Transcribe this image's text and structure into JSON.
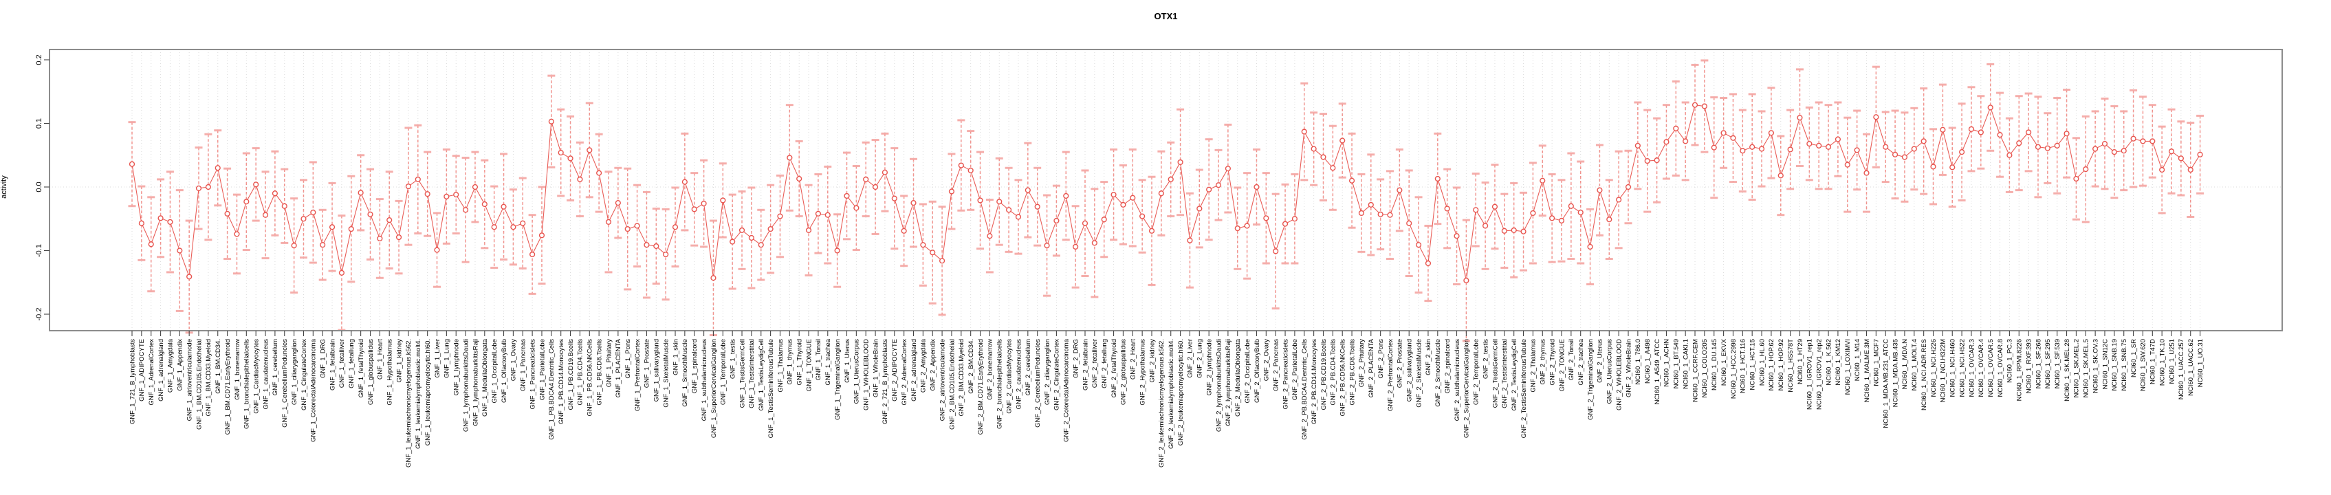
{
  "window": {
    "background": "#ffffff"
  },
  "chart_data": {
    "type": "scatter",
    "title": "OTX1",
    "ylabel": "activity",
    "xlabel": "",
    "ylim": [
      -0.22,
      0.225
    ],
    "grid": "dotted vertical line at every category; dotted horizontal line at 0.0",
    "legend": "none",
    "marker": "open circle with symmetric error bars, consecutive points connected by line",
    "y_ticks": {
      "values": [
        0.2,
        0.1,
        0.0,
        -0.1,
        -0.2
      ],
      "labels": [
        "0.2",
        "0.1",
        "0.0",
        "-0.1",
        "-0.2"
      ]
    },
    "colors": {
      "point": "#e8544e",
      "line": "#e8544e",
      "errorbar": "#f07d76",
      "errorbar_cap": "#f4a6a3",
      "box": "#8c8c8c",
      "grid": "#dbdbdb",
      "text": "#000000"
    },
    "categories": [
      "GNF_1_721_B_lymphoblasts",
      "GNF_1_ADIPOCYTE",
      "GNF_1_AdrenalCortex",
      "GNF_1_adrenalgland",
      "GNF_1_Amygdala",
      "GNF_1_Appendix",
      "GNF_1_atrioventricularnode",
      "GNF_1_BM.CD105.Endothelial",
      "GNF_1_BM.CD33.Myeloid",
      "GNF_1_BM.CD34.",
      "GNF_1_BM.CD71.EarlyErythroid",
      "GNF_1_bonemarrow",
      "GNF_1_bronchialepithelialcells",
      "GNF_1_CardiacMyocytes",
      "GNF_1_caudatenucleus",
      "GNF_1_cerebellum",
      "GNF_1_CerebellumPeduncles",
      "GNF_1_ciliaryganglion",
      "GNF_1_CingulateCortex",
      "GNF_1_ColorectalAdenocarcinoma",
      "GNF_1_DRG",
      "GNF_1_fetalbrain",
      "GNF_1_fetalliver",
      "GNF_1_fetallung",
      "GNF_1_fetalThyroid",
      "GNF_1_globuspallidus",
      "GNF_1_Heart",
      "GNF_1_Hypothalamus",
      "GNF_1_kidney",
      "GNF_1_leukemiachronicmyelogenous.k562.",
      "GNF_1_leukemialymphoblastic.molt4.",
      "GNF_1_leukemiapromyelocytic.hl60.",
      "GNF_1_Liver",
      "GNF_1_Lung",
      "GNF_1_lymphnode",
      "GNF_1_lymphomaburkittsDaudi",
      "GNF_1_lymphomaburkittsRaji",
      "GNF_1_MedullaOblongata",
      "GNF_1_OccipitalLobe",
      "GNF_1_OlfactoryBulb",
      "GNF_1_Ovary",
      "GNF_1_Pancreas",
      "GNF_1_Pancreaticislets",
      "GNF_1_ParietalLobe",
      "GNF_1_PB.BDCA4.Dentritic_Cells",
      "GNF_1_PB.CD14.Monocytes",
      "GNF_1_PB.CD19.Bcells",
      "GNF_1_PB.CD4.Tcells",
      "GNF_1_PB.CD56.NKCells",
      "GNF_1_PB.CD8.Tcells",
      "GNF_1_Pituitary",
      "GNF_1_PLACENTA",
      "GNF_1_Pons",
      "GNF_1_PrefrontalCortex",
      "GNF_1_Prostate",
      "GNF_1_salivarygland",
      "GNF_1_SkeletalMuscle",
      "GNF_1_skin",
      "GNF_1_SmoothMuscle",
      "GNF_1_spinalcord",
      "GNF_1_subthalamicnucleus",
      "GNF_1_SuperiorCervicalGanglion",
      "GNF_1_TemporalLobe",
      "GNF_1_testis",
      "GNF_1_TestisGermCell",
      "GNF_1_TestisInterstitial",
      "GNF_1_TestisLeydigCell",
      "GNF_1_TestisSeminiferousTubule",
      "GNF_1_Thalamus",
      "GNF_1_thymus",
      "GNF_1_Thyroid",
      "GNF_1_TONGUE",
      "GNF_1_Tonsil",
      "GNF_1_trachea",
      "GNF_1_TrigeminalGanglion",
      "GNF_1_Uterus",
      "GNF_1_UterusCorpus",
      "GNF_1_WHOLEBLOOD",
      "GNF_1_WholeBrain",
      "GNF_2_721_B_lymphoblasts",
      "GNF_2_ADIPOCYTE",
      "GNF_2_AdrenalCortex",
      "GNF_2_adrenalgland",
      "GNF_2_Amygdala",
      "GNF_2_Appendix",
      "GNF_2_atrioventricularnode",
      "GNF_2_BM.CD105.Endothelial",
      "GNF_2_BM.CD33.Myeloid",
      "GNF_2_BM.CD34.",
      "GNF_2_BM.CD71.EarlyErythroid",
      "GNF_2_bonemarrow",
      "GNF_2_bronchialepithelialcells",
      "GNF_2_CardiacMyocytes",
      "GNF_2_caudatenucleus",
      "GNF_2_cerebellum",
      "GNF_2_CerebellumPeduncles",
      "GNF_2_ciliaryganglion",
      "GNF_2_CingulateCortex",
      "GNF_2_ColorectalAdenocarcinoma",
      "GNF_2_DRG",
      "GNF_2_fetalbrain",
      "GNF_2_fetalliver",
      "GNF_2_fetallung",
      "GNF_2_fetalThyroid",
      "GNF_2_globuspallidus",
      "GNF_2_Heart",
      "GNF_2_Hypothalamus",
      "GNF_2_kidney",
      "GNF_2_leukemiachronicmyelogenous.k562.",
      "GNF_2_leukemialymphoblastic.molt4.",
      "GNF_2_leukemiapromyelocytic.hl60.",
      "GNF_2_Liver",
      "GNF_2_Lung",
      "GNF_2_lymphnode",
      "GNF_2_lymphomaburkittsDaudi",
      "GNF_2_lymphomaburkittsRaji",
      "GNF_2_MedullaOblongata",
      "GNF_2_OccipitalLobe",
      "GNF_2_OlfactoryBulb",
      "GNF_2_Ovary",
      "GNF_2_Pancreas",
      "GNF_2_Pancreaticislets",
      "GNF_2_ParietalLobe",
      "GNF_2_PB.BDCA4.Dentritic_Cells",
      "GNF_2_PB.CD14.Monocytes",
      "GNF_2_PB.CD19.Bcells",
      "GNF_2_PB.CD4.Tcells",
      "GNF_2_PB.CD56.NKCells",
      "GNF_2_PB.CD8.Tcells",
      "GNF_2_Pituitary",
      "GNF_2_PLACENTA",
      "GNF_2_Pons",
      "GNF_2_PrefrontalCortex",
      "GNF_2_Prostate",
      "GNF_2_salivarygland",
      "GNF_2_SkeletalMuscle",
      "GNF_2_skin",
      "GNF_2_SmoothMuscle",
      "GNF_2_spinalcord",
      "GNF_2_subthalamicnucleus",
      "GNF_2_SuperiorCervicalGanglion",
      "GNF_2_TemporalLobe",
      "GNF_2_testis",
      "GNF_2_TestisGermCell",
      "GNF_2_TestisInterstitial",
      "GNF_2_TestisLeydigCell",
      "GNF_2_TestisSeminiferousTubule",
      "GNF_2_Thalamus",
      "GNF_2_thymus",
      "GNF_2_Thyroid",
      "GNF_2_TONGUE",
      "GNF_2_Tonsil",
      "GNF_2_trachea",
      "GNF_2_TrigeminalGanglion",
      "GNF_2_Uterus",
      "GNF_2_UterusCorpus",
      "GNF_2_WHOLEBLOOD",
      "GNF_2_WholeBrain",
      "NCI60_1_786.0",
      "NCI60_1_A498",
      "NCI60_1_A549_ATCC",
      "NCI60_1_ACHN",
      "NCI60_1_BT.549",
      "NCI60_1_CAKI.1",
      "NCI60_1_CCRF.CEM",
      "NCI60_1_COLO205",
      "NCI60_1_DU.145",
      "NCI60_1_EKVX",
      "NCI60_1_HCC.2998",
      "NCI60_1_HCT.116",
      "NCI60_1_HCT.15",
      "NCI60_1_HL.60",
      "NCI60_1_HOP.62",
      "NCI60_1_HOP.92",
      "NCI60_1_HS578T",
      "NCI60_1_HT29",
      "NCI60_1_IGROV1_rep1",
      "NCI60_1_IGROV1_rep2",
      "NCI60_1_K.562",
      "NCI60_1_KM12",
      "NCI60_1_LOXIMVI",
      "NCI60_1_M14",
      "NCI60_1_MALME.3M",
      "NCI60_1_MCF7",
      "NCI60_1_MDA.MB.231_ATCC",
      "NCI60_1_MDA.MB.435",
      "NCI60_1_MDA.N",
      "NCI60_1_MOLT.4",
      "NCI60_1_NCI.ADR.RES",
      "NCI60_1_NCI.H226",
      "NCI60_1_NCI.H322M",
      "NCI60_1_NCI.H460",
      "NCI60_1_NCI.H522",
      "NCI60_1_OVCAR.3",
      "NCI60_1_OVCAR.4",
      "NCI60_1_OVCAR.5",
      "NCI60_1_OVCAR.8",
      "NCI60_1_PC.3",
      "NCI60_1_RPMI.8226",
      "NCI60_1_RXF.393",
      "NCI60_1_SF.268",
      "NCI60_1_SF.295",
      "NCI60_1_SF.539",
      "NCI60_1_SK.MEL.28",
      "NCI60_1_SK.MEL.2",
      "NCI60_1_SK.MEL.5",
      "NCI60_1_SK.OV.3",
      "NCI60_1_SN12C",
      "NCI60_1_SNB.19",
      "NCI60_1_SNB.75",
      "NCI60_1_SR",
      "NCI60_1_SW.620",
      "NCI60_1_T47D",
      "NCI60_1_TK.10",
      "NCI60_1_U251",
      "NCI60_1_UACC.257",
      "NCI60_1_UACC.62",
      "NCI60_1_UO.31"
    ],
    "values": [
      0.036,
      -0.057,
      -0.09,
      -0.049,
      -0.055,
      -0.1,
      -0.141,
      -0.002,
      0.0,
      0.03,
      -0.042,
      -0.074,
      -0.023,
      0.004,
      -0.044,
      -0.01,
      -0.03,
      -0.092,
      -0.05,
      -0.04,
      -0.091,
      -0.063,
      -0.135,
      -0.066,
      -0.009,
      -0.043,
      -0.081,
      -0.052,
      -0.079,
      0.001,
      0.012,
      -0.011,
      -0.099,
      -0.015,
      -0.012,
      -0.036,
      0.0,
      -0.027,
      -0.063,
      -0.031,
      -0.063,
      -0.057,
      -0.106,
      -0.076,
      0.103,
      0.054,
      0.045,
      0.012,
      0.058,
      0.022,
      -0.055,
      -0.025,
      -0.066,
      -0.061,
      -0.091,
      -0.093,
      -0.106,
      -0.063,
      0.008,
      -0.035,
      -0.026,
      -0.143,
      -0.021,
      -0.086,
      -0.068,
      -0.08,
      -0.091,
      -0.066,
      -0.046,
      0.046,
      0.013,
      -0.068,
      -0.042,
      -0.044,
      -0.1,
      -0.014,
      -0.033,
      0.012,
      0.0,
      0.023,
      -0.018,
      -0.069,
      -0.025,
      -0.091,
      -0.103,
      -0.116,
      -0.007,
      0.034,
      0.026,
      -0.021,
      -0.077,
      -0.023,
      -0.036,
      -0.047,
      -0.005,
      -0.031,
      -0.092,
      -0.053,
      -0.014,
      -0.094,
      -0.057,
      -0.088,
      -0.051,
      -0.012,
      -0.028,
      -0.017,
      -0.046,
      -0.069,
      -0.01,
      0.012,
      0.039,
      -0.084,
      -0.034,
      -0.004,
      0.003,
      0.029,
      -0.065,
      -0.061,
      0.0,
      -0.049,
      -0.101,
      -0.058,
      -0.05,
      0.087,
      0.06,
      0.047,
      0.03,
      0.073,
      0.01,
      -0.041,
      -0.028,
      -0.043,
      -0.044,
      -0.005,
      -0.057,
      -0.091,
      -0.12,
      0.013,
      -0.034,
      -0.077,
      -0.147,
      -0.036,
      -0.061,
      -0.031,
      -0.069,
      -0.068,
      -0.07,
      -0.041,
      0.01,
      -0.049,
      -0.053,
      -0.03,
      -0.04,
      -0.094,
      -0.005,
      -0.051,
      -0.02,
      0.0,
      0.065,
      0.041,
      0.042,
      0.071,
      0.092,
      0.072,
      0.129,
      0.127,
      0.062,
      0.085,
      0.077,
      0.057,
      0.063,
      0.06,
      0.085,
      0.018,
      0.059,
      0.109,
      0.068,
      0.065,
      0.063,
      0.075,
      0.035,
      0.058,
      0.022,
      0.11,
      0.063,
      0.051,
      0.047,
      0.06,
      0.072,
      0.032,
      0.09,
      0.031,
      0.055,
      0.091,
      0.086,
      0.125,
      0.082,
      0.05,
      0.069,
      0.086,
      0.063,
      0.061,
      0.065,
      0.084,
      0.013,
      0.028,
      0.06,
      0.068,
      0.055,
      0.057,
      0.076,
      0.072,
      0.072,
      0.027,
      0.056,
      0.045,
      0.027,
      0.051
    ],
    "errors": [
      0.066,
      0.058,
      0.074,
      0.061,
      0.079,
      0.095,
      0.088,
      0.064,
      0.083,
      0.059,
      0.071,
      0.062,
      0.076,
      0.057,
      0.068,
      0.066,
      0.058,
      0.074,
      0.061,
      0.079,
      0.055,
      0.069,
      0.09,
      0.083,
      0.059,
      0.071,
      0.062,
      0.076,
      0.057,
      0.092,
      0.085,
      0.066,
      0.058,
      0.074,
      0.061,
      0.082,
      0.055,
      0.069,
      0.064,
      0.083,
      0.059,
      0.071,
      0.062,
      0.076,
      0.072,
      0.068,
      0.066,
      0.058,
      0.074,
      0.061,
      0.079,
      0.055,
      0.095,
      0.064,
      0.083,
      0.059,
      0.071,
      0.062,
      0.076,
      0.057,
      0.068,
      0.09,
      0.058,
      0.074,
      0.061,
      0.079,
      0.055,
      0.069,
      0.064,
      0.083,
      0.059,
      0.071,
      0.062,
      0.076,
      0.057,
      0.068,
      0.066,
      0.058,
      0.074,
      0.061,
      0.079,
      0.055,
      0.069,
      0.064,
      0.08,
      0.085,
      0.059,
      0.071,
      0.062,
      0.076,
      0.057,
      0.068,
      0.066,
      0.058,
      0.074,
      0.061,
      0.079,
      0.055,
      0.069,
      0.064,
      0.083,
      0.085,
      0.059,
      0.071,
      0.062,
      0.076,
      0.057,
      0.085,
      0.066,
      0.058,
      0.083,
      0.074,
      0.061,
      0.079,
      0.055,
      0.069,
      0.064,
      0.083,
      0.059,
      0.071,
      0.09,
      0.062,
      0.07,
      0.076,
      0.057,
      0.068,
      0.066,
      0.058,
      0.074,
      0.061,
      0.079,
      0.055,
      0.069,
      0.064,
      0.083,
      0.075,
      0.059,
      0.071,
      0.062,
      0.076,
      0.095,
      0.057,
      0.068,
      0.066,
      0.058,
      0.074,
      0.061,
      0.079,
      0.055,
      0.069,
      0.064,
      0.083,
      0.08,
      0.059,
      0.071,
      0.062,
      0.076,
      0.057,
      0.068,
      0.08,
      0.066,
      0.058,
      0.074,
      0.061,
      0.063,
      0.072,
      0.079,
      0.055,
      0.069,
      0.064,
      0.083,
      0.059,
      0.071,
      0.062,
      0.062,
      0.076,
      0.057,
      0.068,
      0.066,
      0.058,
      0.074,
      0.062,
      0.061,
      0.079,
      0.055,
      0.069,
      0.07,
      0.064,
      0.083,
      0.059,
      0.071,
      0.062,
      0.076,
      0.066,
      0.057,
      0.068,
      0.066,
      0.058,
      0.074,
      0.061,
      0.079,
      0.055,
      0.075,
      0.069,
      0.064,
      0.083,
      0.059,
      0.071,
      0.072,
      0.062,
      0.076,
      0.07,
      0.057,
      0.068,
      0.066,
      0.058,
      0.074,
      0.061
    ]
  }
}
